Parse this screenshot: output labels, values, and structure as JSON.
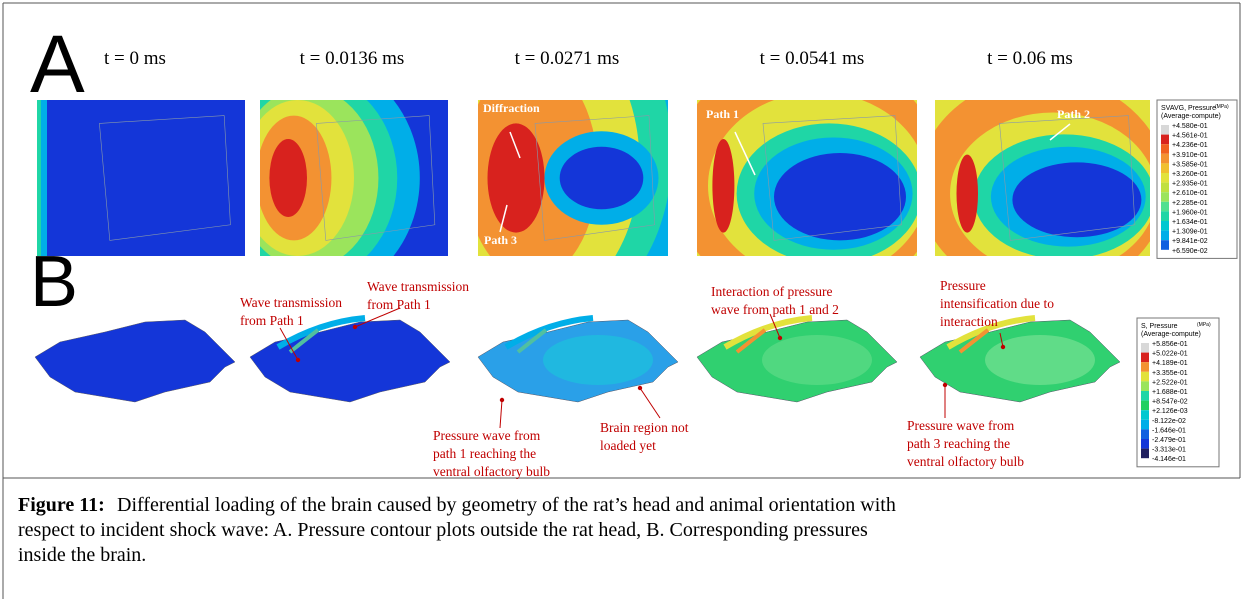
{
  "figure": {
    "panel_labels": [
      "A",
      "B"
    ],
    "times": [
      "t = 0 ms",
      "t = 0.0136 ms",
      "t = 0.0271 ms",
      "t = 0.0541 ms",
      "t = 0.06 ms"
    ],
    "a_annotations": [
      "Diffraction",
      "Path 3",
      "Path 1",
      "Path 2"
    ],
    "legend_a": {
      "title": "SVAVG, Pressure",
      "unit": "(MPa)",
      "subtitle": "(Average-compute)",
      "values": [
        "+4.580e-01",
        "+4.561e-01",
        "+4.236e-01",
        "+3.910e-01",
        "+3.585e-01",
        "+3.260e-01",
        "+2.935e-01",
        "+2.610e-01",
        "+2.285e-01",
        "+1.960e-01",
        "+1.634e-01",
        "+1.309e-01",
        "+9.841e-02",
        "+6.590e-02"
      ]
    },
    "legend_b": {
      "title": "S, Pressure",
      "unit": "(MPa)",
      "subtitle": "(Average-compute)",
      "values": [
        "+5.856e-01",
        "+5.022e-01",
        "+4.189e-01",
        "+3.355e-01",
        "+2.522e-01",
        "+1.688e-01",
        "+8.547e-02",
        "+2.126e-03",
        "-8.122e-02",
        "-1.646e-01",
        "-2.479e-01",
        "-3.313e-01",
        "-4.146e-01"
      ]
    },
    "b_annotations": [
      {
        "lines": [
          "Wave transmission",
          "from Path 1"
        ]
      },
      {
        "lines": [
          "Wave transmission",
          "from Path 1"
        ]
      },
      {
        "lines": [
          "Interaction of pressure",
          "wave from path 1 and 2"
        ]
      },
      {
        "lines": [
          "Pressure",
          "intensification due to",
          "interaction"
        ]
      },
      {
        "lines": [
          "Pressure wave from",
          "path 1 reaching the",
          "ventral olfactory bulb"
        ]
      },
      {
        "lines": [
          "Brain region not",
          "loaded yet"
        ]
      },
      {
        "lines": [
          "Pressure wave from",
          "path 3 reaching the",
          "ventral olfactory bulb"
        ]
      }
    ]
  },
  "caption": {
    "label": "Figure 11:",
    "lines": [
      "Differential loading of the brain caused by geometry of the rat’s head and animal orientation with",
      "respect to incident shock wave: A. Pressure contour plots outside the rat head, B. Corresponding pressures",
      "inside the brain."
    ]
  }
}
